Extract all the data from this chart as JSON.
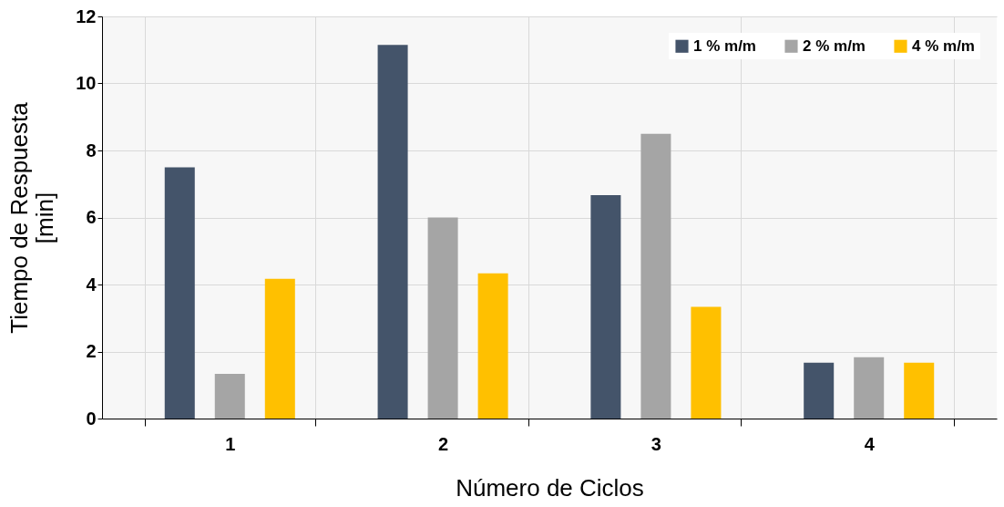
{
  "chart_data": {
    "type": "bar",
    "xlabel": "Número de Ciclos",
    "ylabel": "Tiempo de Respuesta [min]",
    "categories": [
      "1",
      "2",
      "3",
      "4"
    ],
    "series": [
      {
        "name": "1 % m/m",
        "color": "#44546a",
        "values": [
          7.5,
          11.15,
          6.67,
          1.67
        ]
      },
      {
        "name": "2 % m/m",
        "color": "#a5a5a5",
        "values": [
          1.33,
          6.0,
          8.5,
          1.83
        ]
      },
      {
        "name": "4 % m/m",
        "color": "#ffc000",
        "values": [
          4.17,
          4.33,
          3.33,
          1.67
        ]
      }
    ],
    "ylim": [
      0,
      12
    ],
    "yticks": [
      0,
      2,
      4,
      6,
      8,
      10,
      12
    ],
    "grid": true,
    "legend": "top right"
  }
}
